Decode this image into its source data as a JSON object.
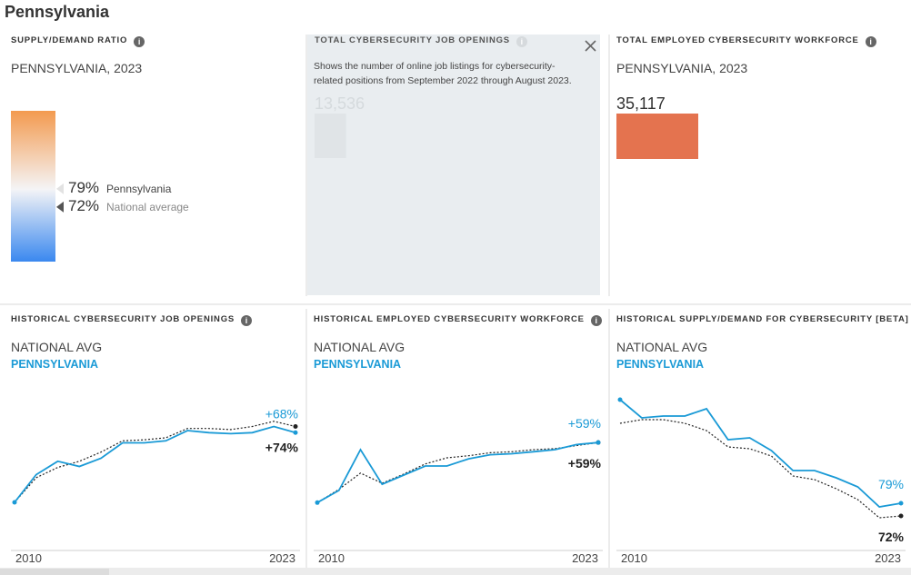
{
  "title": "Pennsylvania",
  "supply_demand": {
    "label": "SUPPLY/DEMAND RATIO",
    "subtitle": "PENNSYLVANIA, 2023",
    "ylim": [
      51,
      109
    ],
    "markers": [
      {
        "name": "Pennsylvania",
        "value": 79,
        "label": "79%"
      },
      {
        "name": "National average",
        "value": 72,
        "label": "72%"
      }
    ]
  },
  "job_openings": {
    "label": "TOTAL CYBERSECURITY JOB OPENINGS",
    "tooltip": "Shows the number of online job listings for cybersecurity-related positions from September 2022 through August 2023.",
    "value": 13536,
    "value_label": "13,536"
  },
  "workforce": {
    "label": "TOTAL EMPLOYED CYBERSECURITY WORKFORCE",
    "subtitle": "PENNSYLVANIA, 2023",
    "value": 35117,
    "value_label": "35,117",
    "color": "#e4734f"
  },
  "chart_data": [
    {
      "type": "line",
      "title": "HISTORICAL CYBERSECURITY JOB OPENINGS",
      "x": [
        2010,
        2011,
        2012,
        2013,
        2014,
        2015,
        2016,
        2017,
        2018,
        2019,
        2020,
        2021,
        2022,
        2023
      ],
      "xticks": [
        2010,
        2023
      ],
      "ylim": [
        -47,
        109
      ],
      "series": [
        {
          "name": "NATIONAL AVG",
          "color": "#222222",
          "style": "dotted",
          "values": [
            0,
            24,
            34,
            40,
            49,
            60,
            61,
            63,
            72,
            72,
            71,
            74,
            79,
            74
          ],
          "value_labels": [
            null,
            null,
            null,
            null,
            null,
            null,
            null,
            null,
            null,
            null,
            null,
            null,
            null,
            "+74%"
          ]
        },
        {
          "name": "PENNSYLVANIA",
          "color": "#1a9ad6",
          "style": "solid",
          "values": [
            0,
            27,
            40,
            35,
            43,
            58,
            58,
            60,
            70,
            68,
            67,
            68,
            74,
            68
          ],
          "value_labels": [
            null,
            null,
            null,
            null,
            null,
            null,
            null,
            null,
            null,
            null,
            null,
            null,
            null,
            "+68%"
          ]
        }
      ]
    },
    {
      "type": "line",
      "title": "HISTORICAL EMPLOYED CYBERSECURITY WORKFORCE",
      "x": [
        2010,
        2011,
        2012,
        2013,
        2014,
        2015,
        2016,
        2017,
        2018,
        2019,
        2020,
        2021,
        2022,
        2023
      ],
      "xticks": [
        2010,
        2023
      ],
      "ylim": [
        -47,
        110
      ],
      "series": [
        {
          "name": "NATIONAL AVG",
          "color": "#222222",
          "style": "dotted",
          "values": [
            0,
            13,
            29,
            19,
            28,
            38,
            44,
            46,
            49,
            50,
            52,
            53,
            56,
            59
          ],
          "value_labels": [
            null,
            null,
            null,
            null,
            null,
            null,
            null,
            null,
            null,
            null,
            null,
            null,
            null,
            "+59%"
          ]
        },
        {
          "name": "PENNSYLVANIA",
          "color": "#1a9ad6",
          "style": "solid",
          "values": [
            0,
            12,
            52,
            18,
            27,
            36,
            36,
            43,
            47,
            48,
            50,
            52,
            57,
            59
          ],
          "value_labels": [
            null,
            null,
            null,
            null,
            null,
            null,
            null,
            null,
            null,
            null,
            null,
            null,
            null,
            "+59%"
          ]
        }
      ]
    },
    {
      "type": "line",
      "title": "HISTORICAL SUPPLY/DEMAND FOR CYBERSECURITY [BETA]",
      "x": [
        2010,
        2011,
        2012,
        2013,
        2014,
        2015,
        2016,
        2017,
        2018,
        2019,
        2020,
        2021,
        2022,
        2023
      ],
      "xticks": [
        2010,
        2023
      ],
      "ylim": [
        53,
        141
      ],
      "series": [
        {
          "name": "NATIONAL AVG",
          "color": "#222222",
          "style": "dotted",
          "values": [
            123,
            125,
            125,
            123,
            119,
            110,
            109,
            105,
            94,
            92,
            87,
            81,
            71,
            72
          ],
          "value_labels": [
            null,
            null,
            null,
            null,
            null,
            null,
            null,
            null,
            null,
            null,
            null,
            null,
            null,
            "72%"
          ]
        },
        {
          "name": "PENNSYLVANIA",
          "color": "#1a9ad6",
          "style": "solid",
          "values": [
            136,
            126,
            127,
            127,
            131,
            114,
            115,
            108,
            97,
            97,
            93,
            88,
            77,
            79
          ],
          "value_labels": [
            null,
            null,
            null,
            null,
            null,
            null,
            null,
            null,
            null,
            null,
            null,
            null,
            null,
            "79%"
          ]
        }
      ]
    }
  ]
}
